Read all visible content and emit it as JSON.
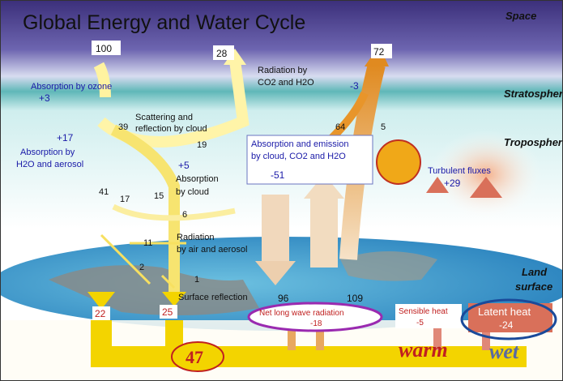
{
  "title": "Global Energy and Water Cycle",
  "layers": {
    "space": "Space",
    "stratosphere": "Stratosphere",
    "troposphere": "Troposphere",
    "land_surface": [
      "Land",
      "surface"
    ]
  },
  "solar_in": "100",
  "reflected_out": "28",
  "longwave_out": "72",
  "radiation_co2": {
    "lines": [
      "Radiation by",
      "CO2 and H2O"
    ],
    "value": "-3"
  },
  "ozone": {
    "label": "Absorption by ozone",
    "value": "+3"
  },
  "h2o_aerosol": {
    "value": "+17",
    "lines": [
      "Absorption by",
      "H2O and aerosol"
    ]
  },
  "scattering": {
    "value": "39",
    "lines": [
      "Scattering and",
      "reflection by cloud"
    ],
    "cloud_reflect": "19"
  },
  "cloud_absorption": {
    "value": "+5",
    "lines": [
      "Absorption",
      "by cloud"
    ]
  },
  "flows": {
    "a41": "41",
    "a17": "17",
    "a15": "15",
    "a6": "6",
    "a11": "11",
    "a2": "2",
    "a1": "1",
    "a64": "64",
    "a5": "5"
  },
  "air_radiation": [
    "Radiation",
    "by air and aerosol"
  ],
  "surface_reflection": "Surface reflection",
  "surface_up": "96",
  "back_radiation": "109",
  "cloud_emission": {
    "lines": [
      "Absorption and emission",
      "by cloud, CO2 and H2O"
    ],
    "value": "-51"
  },
  "turbulent": {
    "label": "Turbulent fluxes",
    "value": "+29"
  },
  "surface_absorbed_left": "22",
  "surface_absorbed_right": "25",
  "net_longwave": {
    "label": "Net long wave radiation",
    "value": "-18"
  },
  "sensible_heat": {
    "label": "Sensible heat",
    "value": "-5"
  },
  "latent_heat": {
    "label": "Latent heat",
    "value": "-24"
  },
  "total_absorbed": "47",
  "warm": "warm",
  "wet": "wet"
}
